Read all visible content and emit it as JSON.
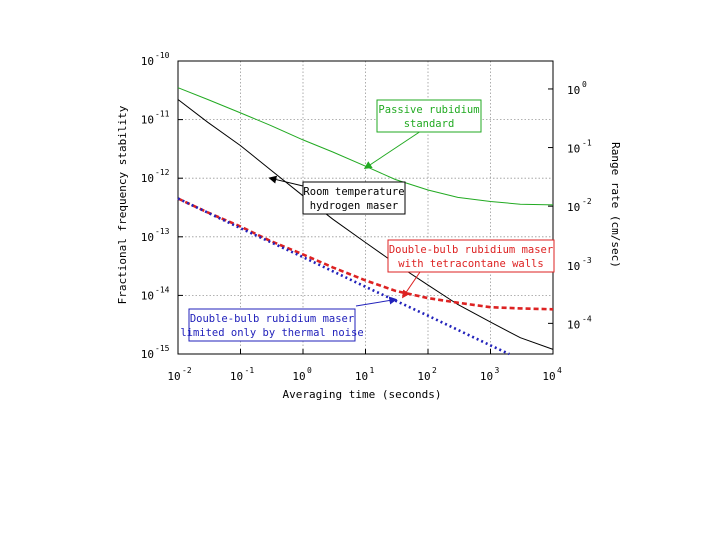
{
  "chart_data": {
    "type": "line",
    "title": "",
    "xlabel": "Averaging time (seconds)",
    "ylabel_left": "Fractional frequency stability",
    "ylabel_right": "Range rate (cm/sec)",
    "x_scale": "log",
    "y_scale": "log",
    "xlim": [
      0.01,
      10000
    ],
    "ylim": [
      1e-15,
      1e-10
    ],
    "grid": true,
    "x_ticks": [
      {
        "value": 0.01,
        "base": "10",
        "exp": "-2"
      },
      {
        "value": 0.1,
        "base": "10",
        "exp": "-1"
      },
      {
        "value": 1,
        "base": "10",
        "exp": "0"
      },
      {
        "value": 10,
        "base": "10",
        "exp": "1"
      },
      {
        "value": 100,
        "base": "10",
        "exp": "2"
      },
      {
        "value": 1000,
        "base": "10",
        "exp": "3"
      },
      {
        "value": 10000,
        "base": "10",
        "exp": "4"
      }
    ],
    "y_ticks_left": [
      {
        "value": 1e-10,
        "base": "10",
        "exp": "-10"
      },
      {
        "value": 1e-11,
        "base": "10",
        "exp": "-11"
      },
      {
        "value": 1e-12,
        "base": "10",
        "exp": "-12"
      },
      {
        "value": 1e-13,
        "base": "10",
        "exp": "-13"
      },
      {
        "value": 1e-14,
        "base": "10",
        "exp": "-14"
      },
      {
        "value": 1e-15,
        "base": "10",
        "exp": "-15"
      }
    ],
    "y_ticks_right": [
      {
        "value": 1.0,
        "base": "10",
        "exp": "0"
      },
      {
        "value": 0.1,
        "base": "10",
        "exp": "-1"
      },
      {
        "value": 0.01,
        "base": "10",
        "exp": "-2"
      },
      {
        "value": 0.001,
        "base": "10",
        "exp": "-3"
      },
      {
        "value": 0.0001,
        "base": "10",
        "exp": "-4"
      }
    ],
    "right_axis_equivalence": {
      "left_value": 1e-11,
      "right_value": 0.3
    },
    "series": [
      {
        "name": "Passive rubidium standard",
        "color": "#22aa22",
        "style": "solid",
        "points": [
          [
            0.01,
            3.5e-11
          ],
          [
            0.03,
            2.2e-11
          ],
          [
            0.1,
            1.3e-11
          ],
          [
            0.3,
            8e-12
          ],
          [
            1,
            4.5e-12
          ],
          [
            3,
            2.8e-12
          ],
          [
            10,
            1.6e-12
          ],
          [
            30,
            9.5e-13
          ],
          [
            100,
            6.3e-13
          ],
          [
            300,
            4.7e-13
          ],
          [
            1000,
            4e-13
          ],
          [
            3000,
            3.6e-13
          ],
          [
            10000,
            3.5e-13
          ]
        ]
      },
      {
        "name": "Room temperature hydrogen maser",
        "color": "#000000",
        "style": "solid",
        "points": [
          [
            0.01,
            2.2e-11
          ],
          [
            0.03,
            9e-12
          ],
          [
            0.1,
            3.6e-12
          ],
          [
            0.3,
            1.4e-12
          ],
          [
            1,
            5e-13
          ],
          [
            3,
            2e-13
          ],
          [
            10,
            8e-14
          ],
          [
            30,
            3.5e-14
          ],
          [
            100,
            1.5e-14
          ],
          [
            300,
            7e-15
          ],
          [
            1000,
            3.5e-15
          ],
          [
            3000,
            1.9e-15
          ],
          [
            10000,
            1.2e-15
          ]
        ]
      },
      {
        "name": "Double-bulb rubidium maser with tetracontane walls",
        "color": "#dd2222",
        "style": "dashed",
        "points": [
          [
            0.01,
            4.5e-13
          ],
          [
            0.03,
            2.6e-13
          ],
          [
            0.1,
            1.5e-13
          ],
          [
            0.3,
            8.5e-14
          ],
          [
            1,
            5e-14
          ],
          [
            3,
            3e-14
          ],
          [
            10,
            1.8e-14
          ],
          [
            30,
            1.2e-14
          ],
          [
            100,
            9e-15
          ],
          [
            300,
            7.5e-15
          ],
          [
            1000,
            6.3e-15
          ],
          [
            3000,
            6e-15
          ],
          [
            10000,
            5.8e-15
          ]
        ]
      },
      {
        "name": "Double-bulb rubidium maser limited only by thermal noise",
        "color": "#2222bb",
        "style": "dotted",
        "points": [
          [
            0.01,
            4.5e-13
          ],
          [
            0.1,
            1.4e-13
          ],
          [
            1,
            4.5e-14
          ],
          [
            10,
            1.4e-14
          ],
          [
            100,
            4.5e-15
          ],
          [
            1000,
            1.4e-15
          ],
          [
            2000,
            1e-15
          ]
        ]
      }
    ],
    "annotations": [
      {
        "id": "passive",
        "lines": [
          "Passive rubidium",
          "standard"
        ],
        "color": "#22aa22",
        "boxed": true,
        "arrow_to": [
          10,
          1.5e-12
        ]
      },
      {
        "id": "hmaser",
        "lines": [
          "Room temperature",
          "hydrogen maser"
        ],
        "color": "#000000",
        "boxed": true,
        "arrow_to": [
          0.3,
          1e-12
        ]
      },
      {
        "id": "tetra",
        "lines": [
          "Double-bulb rubidium maser",
          "with tetracontane walls"
        ],
        "color": "#dd2222",
        "boxed": true,
        "arrow_to": [
          40,
          9.5e-15
        ]
      },
      {
        "id": "thermal",
        "lines": [
          "Double-bulb rubidium maser",
          "limited only by thermal noise"
        ],
        "color": "#2222bb",
        "boxed": true,
        "arrow_to": [
          30,
          8.5e-15
        ]
      }
    ]
  }
}
